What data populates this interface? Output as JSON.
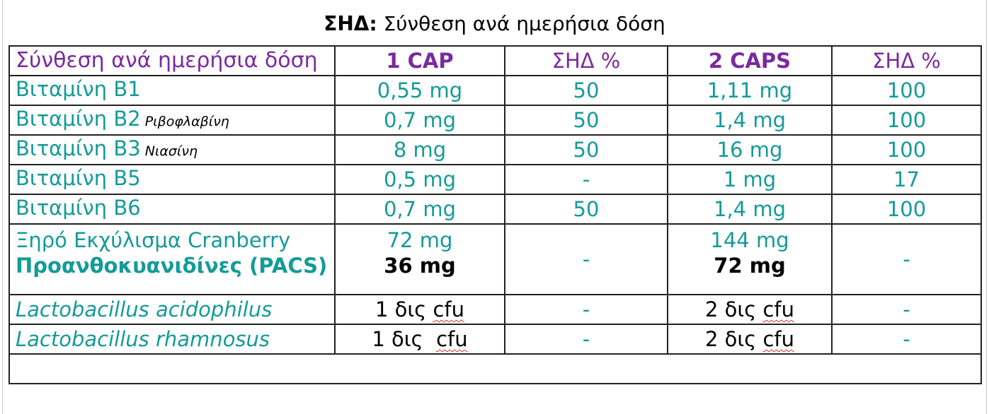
{
  "title": {
    "bold": "ΣΗΔ:",
    "rest": "Σύνθεση ανά ημερήσια δόση"
  },
  "header": {
    "label": "Σύνθεση ανά ημερήσια δόση",
    "col1": "1 CAP",
    "col2": "ΣΗΔ %",
    "col3": "2 CAPS",
    "col4": "ΣΗΔ %"
  },
  "rows": [
    {
      "name": "Βιταμίνη Β1",
      "sub": "",
      "cap1": "0,55 mg",
      "rda1": "50",
      "cap2": "1,11 mg",
      "rda2": "100"
    },
    {
      "name": "Βιταμίνη Β2",
      "sub": "Ριβοφλαβίνη",
      "cap1": "0,7 mg",
      "rda1": "50",
      "cap2": "1,4 mg",
      "rda2": "100"
    },
    {
      "name": "Βιταμίνη Β3",
      "sub": "Νιασίνη",
      "cap1": "8 mg",
      "rda1": "50",
      "cap2": "16 mg",
      "rda2": "100"
    },
    {
      "name": "Βιταμίνη Β5",
      "sub": "",
      "cap1": "0,5 mg",
      "rda1": "-",
      "cap2": "1 mg",
      "rda2": "17"
    },
    {
      "name": "Βιταμίνη Β6",
      "sub": "",
      "cap1": "0,7 mg",
      "rda1": "50",
      "cap2": "1,4 mg",
      "rda2": "100"
    }
  ],
  "cranberry": {
    "name": "Ξηρό Εκχύλισμα Cranberry",
    "sub_name": "Προανθοκυανιδίνες (PACS)",
    "cap1": "72 mg",
    "cap1_sub": "36 mg",
    "rda1": "-",
    "cap2": "144 mg",
    "cap2_sub": "72 mg",
    "rda2": "-"
  },
  "probiotics": [
    {
      "name": "Lactobacillus acidophilus",
      "cap1_num": "1 δις",
      "cap1_unit": "cfu",
      "rda1": "-",
      "cap2_num": "2 δις",
      "cap2_unit": "cfu",
      "rda2": "-"
    },
    {
      "name": "Lactobacillus rhamnosus",
      "cap1_num": "1 δις ",
      "cap1_unit": "cfu",
      "rda1": "-",
      "cap2_num": "2 δις",
      "cap2_unit": "cfu",
      "rda2": "-"
    }
  ]
}
